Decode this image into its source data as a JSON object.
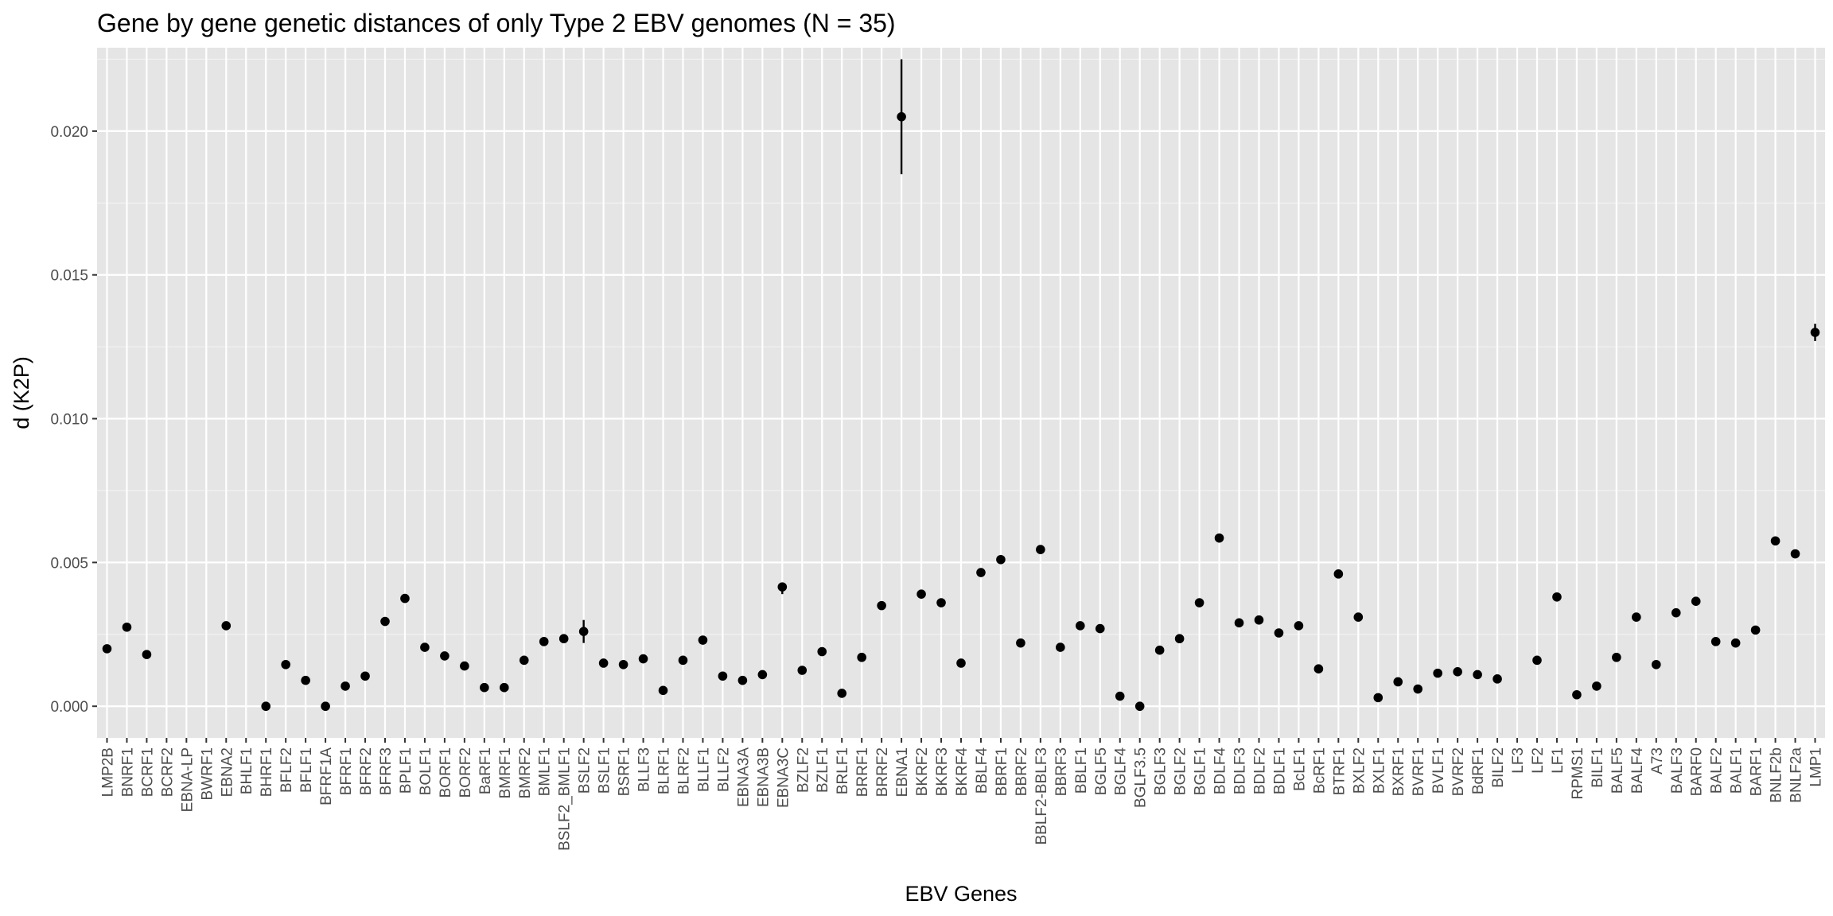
{
  "colors": {
    "panel_background": "#e5e5e5",
    "grid_major": "#ffffff",
    "point": "#000000",
    "tick_text": "#4d4d4d",
    "tick_mark": "#333333"
  },
  "chart_data": {
    "type": "scatter",
    "geom": "point with vertical error bars",
    "title": "Gene by gene genetic distances of only Type 2 EBV genomes (N = 35)",
    "xlabel": "EBV Genes",
    "ylabel": "d (K2P)",
    "ylim": [
      -0.0011,
      0.0229
    ],
    "y_ticks": [
      0.0,
      0.005,
      0.01,
      0.015,
      0.02
    ],
    "y_tick_labels": [
      "0.000",
      "0.005",
      "0.010",
      "0.015",
      "0.020"
    ],
    "grid": true,
    "legend": "none",
    "categories": [
      "LMP2B",
      "BNRF1",
      "BCRF1",
      "BCRF2",
      "EBNA-LP",
      "BWRF1",
      "EBNA2",
      "BHLF1",
      "BHRF1",
      "BFLF2",
      "BFLF1",
      "BFRF1A",
      "BFRF1",
      "BFRF2",
      "BFRF3",
      "BPLF1",
      "BOLF1",
      "BORF1",
      "BORF2",
      "BaRF1",
      "BMRF1",
      "BMRF2",
      "BMLF1",
      "BSLF2_BMLF1",
      "BSLF2",
      "BSLF1",
      "BSRF1",
      "BLLF3",
      "BLRF1",
      "BLRF2",
      "BLLF1",
      "BLLF2",
      "EBNA3A",
      "EBNA3B",
      "EBNA3C",
      "BZLF2",
      "BZLF1",
      "BRLF1",
      "BRRF1",
      "BRRF2",
      "EBNA1",
      "BKRF2",
      "BKRF3",
      "BKRF4",
      "BBLF4",
      "BBRF1",
      "BBRF2",
      "BBLF2-BBLF3",
      "BBRF3",
      "BBLF1",
      "BGLF5",
      "BGLF4",
      "BGLF3.5",
      "BGLF3",
      "BGLF2",
      "BGLF1",
      "BDLF4",
      "BDLF3",
      "BDLF2",
      "BDLF1",
      "BcLF1",
      "BcRF1",
      "BTRF1",
      "BXLF2",
      "BXLF1",
      "BXRF1",
      "BVRF1",
      "BVLF1",
      "BVRF2",
      "BdRF1",
      "BILF2",
      "LF3",
      "LF2",
      "LF1",
      "RPMS1",
      "BILF1",
      "BALF5",
      "BALF4",
      "A73",
      "BALF3",
      "BARF0",
      "BALF2",
      "BALF1",
      "BARF1",
      "BNLF2b",
      "BNLF2a",
      "LMP1"
    ],
    "values": [
      0.002,
      0.00275,
      0.0018,
      null,
      null,
      null,
      0.0028,
      null,
      0.0,
      0.00145,
      0.0009,
      0.0,
      0.0007,
      0.00105,
      0.00295,
      0.00375,
      0.00205,
      0.00175,
      0.0014,
      0.00065,
      0.00065,
      0.0016,
      0.00225,
      0.00235,
      0.0026,
      0.0015,
      0.00145,
      0.00165,
      0.00055,
      0.0016,
      0.0023,
      0.00105,
      0.0009,
      0.0011,
      0.00415,
      0.00125,
      0.0019,
      0.00045,
      0.0017,
      0.0035,
      0.0205,
      0.0039,
      0.0036,
      0.0015,
      0.00465,
      0.0051,
      0.0022,
      0.00545,
      0.00205,
      0.0028,
      0.0027,
      0.00035,
      0.0,
      0.00195,
      0.00235,
      0.0036,
      0.00585,
      0.0029,
      0.003,
      0.00255,
      0.0028,
      0.0013,
      0.0046,
      0.0031,
      0.0003,
      0.00085,
      0.0006,
      0.00115,
      0.0012,
      0.0011,
      0.00095,
      null,
      0.0016,
      0.0038,
      0.0004,
      0.0007,
      0.0017,
      0.0031,
      0.00145,
      0.00325,
      0.00365,
      0.00225,
      0.0022,
      0.00265,
      0.00575,
      0.0053,
      0.013
    ],
    "error_low": [
      0.0019,
      0.00275,
      0.0018,
      null,
      null,
      null,
      0.0028,
      null,
      0.0,
      0.00145,
      0.0009,
      0.0,
      0.0007,
      0.00105,
      0.00295,
      0.00375,
      0.00205,
      0.00175,
      0.0014,
      0.00065,
      0.00065,
      0.0016,
      0.00225,
      0.00235,
      0.0022,
      0.0015,
      0.00145,
      0.00165,
      0.00055,
      0.0016,
      0.0022,
      0.00105,
      0.0009,
      0.0011,
      0.0039,
      0.00125,
      0.0019,
      0.00045,
      0.0017,
      0.0035,
      0.0185,
      0.0039,
      0.0036,
      0.0015,
      0.00465,
      0.005,
      0.0022,
      0.0053,
      0.00205,
      0.0028,
      0.0027,
      0.00035,
      0.0,
      0.00195,
      0.00235,
      0.0036,
      0.0057,
      0.0029,
      0.003,
      0.00255,
      0.0028,
      0.0013,
      0.0045,
      0.0031,
      0.0003,
      0.00085,
      0.0006,
      0.00115,
      0.0012,
      0.0011,
      0.00095,
      null,
      0.0016,
      0.0038,
      0.0004,
      0.0007,
      0.0017,
      0.0031,
      0.00145,
      0.00325,
      0.00365,
      0.00225,
      0.0022,
      0.00265,
      0.0057,
      0.0052,
      0.0127
    ],
    "error_high": [
      0.0021,
      0.00275,
      0.0018,
      null,
      null,
      null,
      0.0028,
      null,
      0.0,
      0.00145,
      0.0009,
      0.0,
      0.0007,
      0.00105,
      0.00295,
      0.00375,
      0.00205,
      0.00175,
      0.0014,
      0.00065,
      0.00065,
      0.0016,
      0.00225,
      0.00235,
      0.003,
      0.0015,
      0.00145,
      0.00165,
      0.00055,
      0.0016,
      0.0024,
      0.00105,
      0.0009,
      0.0011,
      0.0043,
      0.00125,
      0.0019,
      0.00045,
      0.0017,
      0.0035,
      0.0225,
      0.0039,
      0.0036,
      0.0015,
      0.00465,
      0.0052,
      0.0022,
      0.0056,
      0.00205,
      0.0028,
      0.0027,
      0.00035,
      0.0,
      0.00195,
      0.00235,
      0.0036,
      0.006,
      0.0029,
      0.003,
      0.00255,
      0.0028,
      0.0013,
      0.0047,
      0.0031,
      0.0003,
      0.00085,
      0.0006,
      0.00115,
      0.0012,
      0.0011,
      0.00095,
      null,
      0.0016,
      0.0038,
      0.0004,
      0.0007,
      0.0017,
      0.0031,
      0.00145,
      0.00325,
      0.00365,
      0.00225,
      0.0022,
      0.00265,
      0.0058,
      0.0054,
      0.0133
    ]
  }
}
